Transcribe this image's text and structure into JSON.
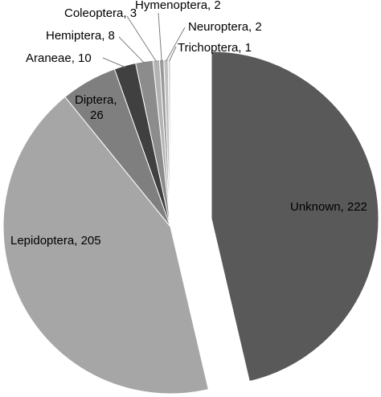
{
  "chart_data": {
    "type": "pie",
    "categories": [
      "Unknown",
      "Lepidoptera",
      "Diptera",
      "Araneae",
      "Hemiptera",
      "Coleoptera",
      "Hymenoptera",
      "Neuroptera",
      "Trichoptera"
    ],
    "values": [
      222,
      205,
      26,
      10,
      8,
      3,
      2,
      2,
      1
    ],
    "labels": [
      "Unknown, 222",
      "Lepidoptera, 205",
      "Diptera,",
      "26",
      "Araneae, 10",
      "Hemiptera, 8",
      "Coleoptera, 3",
      "Hymenoptera, 2",
      "Neuroptera, 2",
      "Trichoptera, 1"
    ],
    "colors": [
      "#595959",
      "#a6a6a6",
      "#7f7f7f",
      "#404040",
      "#8c8c8c",
      "#b3b3b3",
      "#9a9a9a",
      "#c0c0c0",
      "#cfcfcf"
    ],
    "exploded": "Unknown",
    "start_angle": "12 o'clock, clockwise",
    "title": "",
    "legend": "none"
  }
}
